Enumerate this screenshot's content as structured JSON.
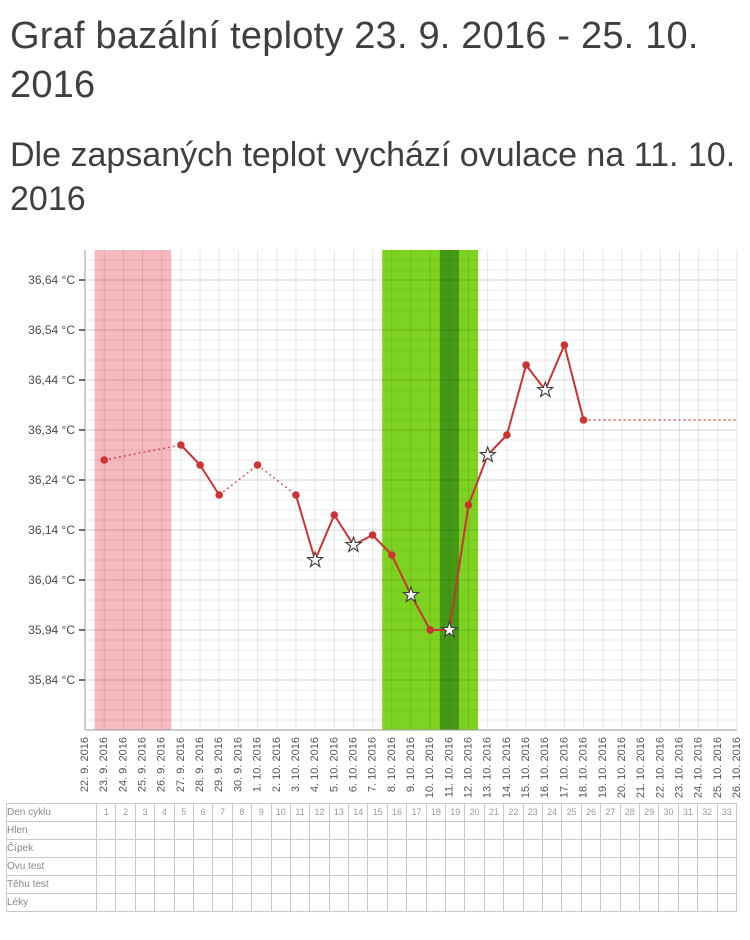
{
  "header": {
    "title": "Graf bazální teploty 23. 9. 2016 - 25. 10. 2016",
    "subtitle": "Dle zapsaných teplot vychází ovulace na 11. 10. 2016"
  },
  "chart_data": {
    "type": "line",
    "unit": "°C",
    "y_axis": {
      "min": 35.74,
      "max": 36.7,
      "minor_step": 0.02,
      "ticks": [
        {
          "value": 36.64,
          "label": "36,64 °C"
        },
        {
          "value": 36.54,
          "label": "36,54 °C"
        },
        {
          "value": 36.44,
          "label": "36,44 °C"
        },
        {
          "value": 36.34,
          "label": "36,34 °C"
        },
        {
          "value": 36.24,
          "label": "36,24 °C"
        },
        {
          "value": 36.14,
          "label": "36,14 °C"
        },
        {
          "value": 36.04,
          "label": "36,04 °C"
        },
        {
          "value": 35.94,
          "label": "35,94 °C"
        },
        {
          "value": 35.84,
          "label": "35,84 °C"
        }
      ]
    },
    "x_labels": [
      "22. 9. 2016",
      "23. 9. 2016",
      "24. 9. 2016",
      "25. 9. 2016",
      "26. 9. 2016",
      "27. 9. 2016",
      "28. 9. 2016",
      "29. 9. 2016",
      "30. 9. 2016",
      "1. 10. 2016",
      "2. 10. 2016",
      "3. 10. 2016",
      "4. 10. 2016",
      "5. 10. 2016",
      "6. 10. 2016",
      "7. 10. 2016",
      "8. 10. 2016",
      "9. 10. 2016",
      "10. 10. 2016",
      "11. 10. 2016",
      "12. 10. 2016",
      "13. 10. 2016",
      "14. 10. 2016",
      "15. 10. 2016",
      "16. 10. 2016",
      "17. 10. 2016",
      "18. 10. 2016",
      "19. 10. 2016",
      "20. 10. 2016",
      "21. 10. 2016",
      "22. 10. 2016",
      "23. 10. 2016",
      "24. 10. 2016",
      "25. 10. 2016",
      "26. 10. 2016"
    ],
    "regions": [
      {
        "name": "menstruace",
        "from": 1,
        "to": 4,
        "color": "#f6b9c0"
      },
      {
        "name": "plodne-dny",
        "from": 16,
        "to": 20,
        "color": "#7ed321"
      },
      {
        "name": "ovulace",
        "from": 19,
        "to": 19,
        "color": "#459a13"
      }
    ],
    "series": [
      {
        "name": "bazální teplota",
        "color": "#cc3333",
        "points": [
          {
            "i": 1,
            "t": 36.28,
            "m": "dot"
          },
          {
            "i": 5,
            "t": 36.31,
            "m": "dot"
          },
          {
            "i": 6,
            "t": 36.27,
            "m": "dot"
          },
          {
            "i": 7,
            "t": 36.21,
            "m": "dot"
          },
          {
            "i": 9,
            "t": 36.27,
            "m": "dot"
          },
          {
            "i": 11,
            "t": 36.21,
            "m": "dot"
          },
          {
            "i": 12,
            "t": 36.08,
            "m": "star"
          },
          {
            "i": 13,
            "t": 36.17,
            "m": "dot"
          },
          {
            "i": 14,
            "t": 36.11,
            "m": "star"
          },
          {
            "i": 15,
            "t": 36.13,
            "m": "dot"
          },
          {
            "i": 16,
            "t": 36.09,
            "m": "dot"
          },
          {
            "i": 17,
            "t": 36.01,
            "m": "star"
          },
          {
            "i": 18,
            "t": 35.94,
            "m": "dot"
          },
          {
            "i": 19,
            "t": 35.94,
            "m": "star"
          },
          {
            "i": 20,
            "t": 36.19,
            "m": "dot"
          },
          {
            "i": 21,
            "t": 36.29,
            "m": "star"
          },
          {
            "i": 22,
            "t": 36.33,
            "m": "dot"
          },
          {
            "i": 23,
            "t": 36.47,
            "m": "dot"
          },
          {
            "i": 24,
            "t": 36.42,
            "m": "star"
          },
          {
            "i": 25,
            "t": 36.51,
            "m": "dot"
          },
          {
            "i": 26,
            "t": 36.36,
            "m": "dot"
          }
        ]
      }
    ],
    "projection": {
      "from": 26,
      "to": 34,
      "t": 36.36
    }
  },
  "table": {
    "days": 33,
    "rows": [
      {
        "label": "Den cyklu",
        "cells": [
          "1",
          "2",
          "3",
          "4",
          "5",
          "6",
          "7",
          "8",
          "9",
          "10",
          "11",
          "12",
          "13",
          "14",
          "15",
          "16",
          "17",
          "18",
          "19",
          "20",
          "21",
          "22",
          "23",
          "24",
          "25",
          "26",
          "27",
          "28",
          "29",
          "30",
          "31",
          "32",
          "33"
        ]
      },
      {
        "label": "Hlen",
        "cells": []
      },
      {
        "label": "Čípek",
        "cells": []
      },
      {
        "label": "Ovu test",
        "cells": []
      },
      {
        "label": "Těhu test",
        "cells": []
      },
      {
        "label": "Léky",
        "cells": []
      }
    ]
  }
}
